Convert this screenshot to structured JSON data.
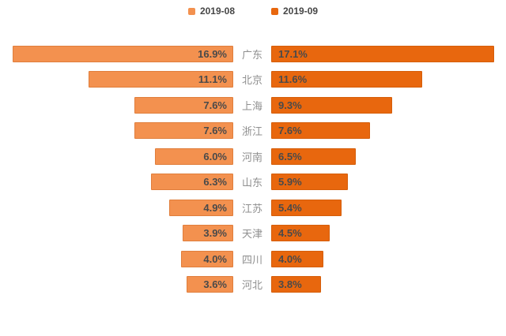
{
  "legend": {
    "items": [
      {
        "label": "2019-08",
        "color": "#F3914F"
      },
      {
        "label": "2019-09",
        "color": "#E8670E"
      }
    ]
  },
  "chart_data": {
    "type": "bar",
    "orientation": "horizontal-mirrored",
    "title": "",
    "categories": [
      "广东",
      "北京",
      "上海",
      "浙江",
      "河南",
      "山东",
      "江苏",
      "天津",
      "四川",
      "河北"
    ],
    "series": [
      {
        "name": "2019-08",
        "color": "#F3914F",
        "side": "left",
        "values": [
          16.9,
          11.1,
          7.6,
          7.6,
          6.0,
          6.3,
          4.9,
          3.9,
          4.0,
          3.6
        ]
      },
      {
        "name": "2019-09",
        "color": "#E8670E",
        "side": "right",
        "values": [
          17.1,
          11.6,
          9.3,
          7.6,
          6.5,
          5.9,
          5.4,
          4.5,
          4.0,
          3.8
        ]
      }
    ],
    "value_format": "percent-one-decimal",
    "value_labels_inside_bars": true,
    "axis_visible": false,
    "grid": false,
    "legend_position": "top-center",
    "xmax": 17.1
  }
}
